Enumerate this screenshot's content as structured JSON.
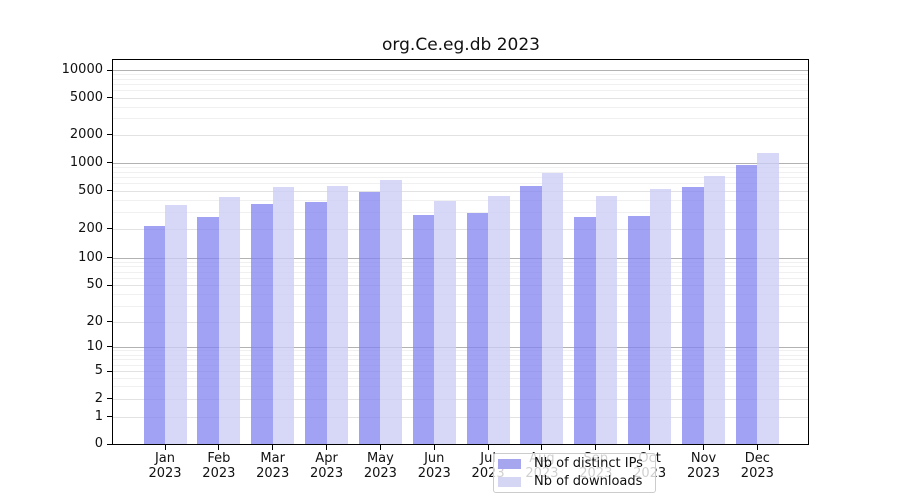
{
  "window": {
    "background": "#ffffff"
  },
  "chart": {
    "title": "org.Ce.eg.db 2023",
    "legend": {
      "position": "bottom-center",
      "items": [
        {
          "label": "Nb of distinct IPs",
          "swatch": "#a6a6ee"
        },
        {
          "label": "Nb of downloads",
          "swatch": "#d5d5f4"
        }
      ]
    }
  },
  "chart_data": {
    "type": "bar",
    "title": "org.Ce.eg.db 2023",
    "categories": [
      "Jan 2023",
      "Feb 2023",
      "Mar 2023",
      "Apr 2023",
      "May 2023",
      "Jun 2023",
      "Jul 2023",
      "Aug 2023",
      "Sep 2023",
      "Oct 2023",
      "Nov 2023",
      "Dec 2023"
    ],
    "series": [
      {
        "name": "Nb of distinct IPs",
        "color": "rgba(131,131,240,0.75)",
        "values": [
          215,
          263,
          360,
          380,
          485,
          277,
          292,
          560,
          263,
          269,
          550,
          950
        ]
      },
      {
        "name": "Nb of downloads",
        "color": "rgba(204,204,245,0.78)",
        "values": [
          350,
          428,
          545,
          555,
          647,
          385,
          440,
          770,
          443,
          515,
          720,
          1280
        ]
      }
    ],
    "xlabel": "",
    "ylabel": "",
    "yscale": "symlog",
    "yticks": [
      0,
      1,
      2,
      5,
      10,
      20,
      50,
      100,
      200,
      500,
      1000,
      2000,
      5000,
      10000
    ],
    "ylim": [
      0,
      13000
    ],
    "grid": true,
    "grid_colors": {
      "decade": "#b2b2b2",
      "sub": "#e2e2e2",
      "minor": "#f0f0f0"
    },
    "legend_position": "bottom-center"
  }
}
